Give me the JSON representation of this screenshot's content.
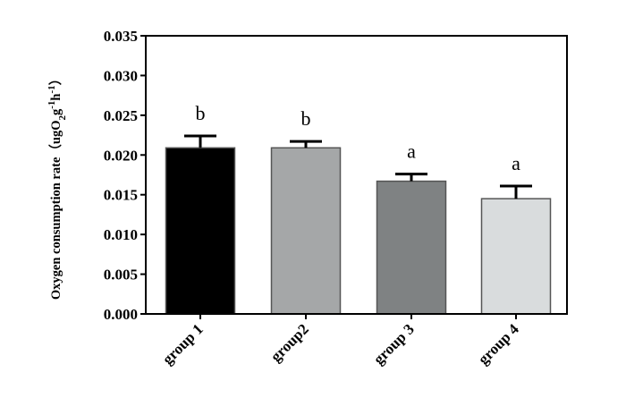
{
  "chart_data": {
    "type": "bar",
    "categories": [
      "group 1",
      "group2",
      "group 3",
      "group 4"
    ],
    "values": [
      0.0209,
      0.0209,
      0.0167,
      0.0145
    ],
    "errors": [
      0.0015,
      0.0008,
      0.0009,
      0.0016
    ],
    "significance": [
      "b",
      "b",
      "a",
      "a"
    ],
    "colors": [
      "#000000",
      "#a5a7a8",
      "#7f8283",
      "#d9dcdd"
    ],
    "ylabel": {
      "main": "Oxygen consumption rate（ugO",
      "sub": "2",
      "mid1": "g",
      "sup1": "-1",
      "mid2": "h",
      "sup2": "-1",
      "close": "）"
    },
    "ylim": [
      0,
      0.035
    ],
    "yticks": [
      "0.000",
      "0.005",
      "0.010",
      "0.015",
      "0.020",
      "0.025",
      "0.030",
      "0.035"
    ],
    "grid": false
  }
}
